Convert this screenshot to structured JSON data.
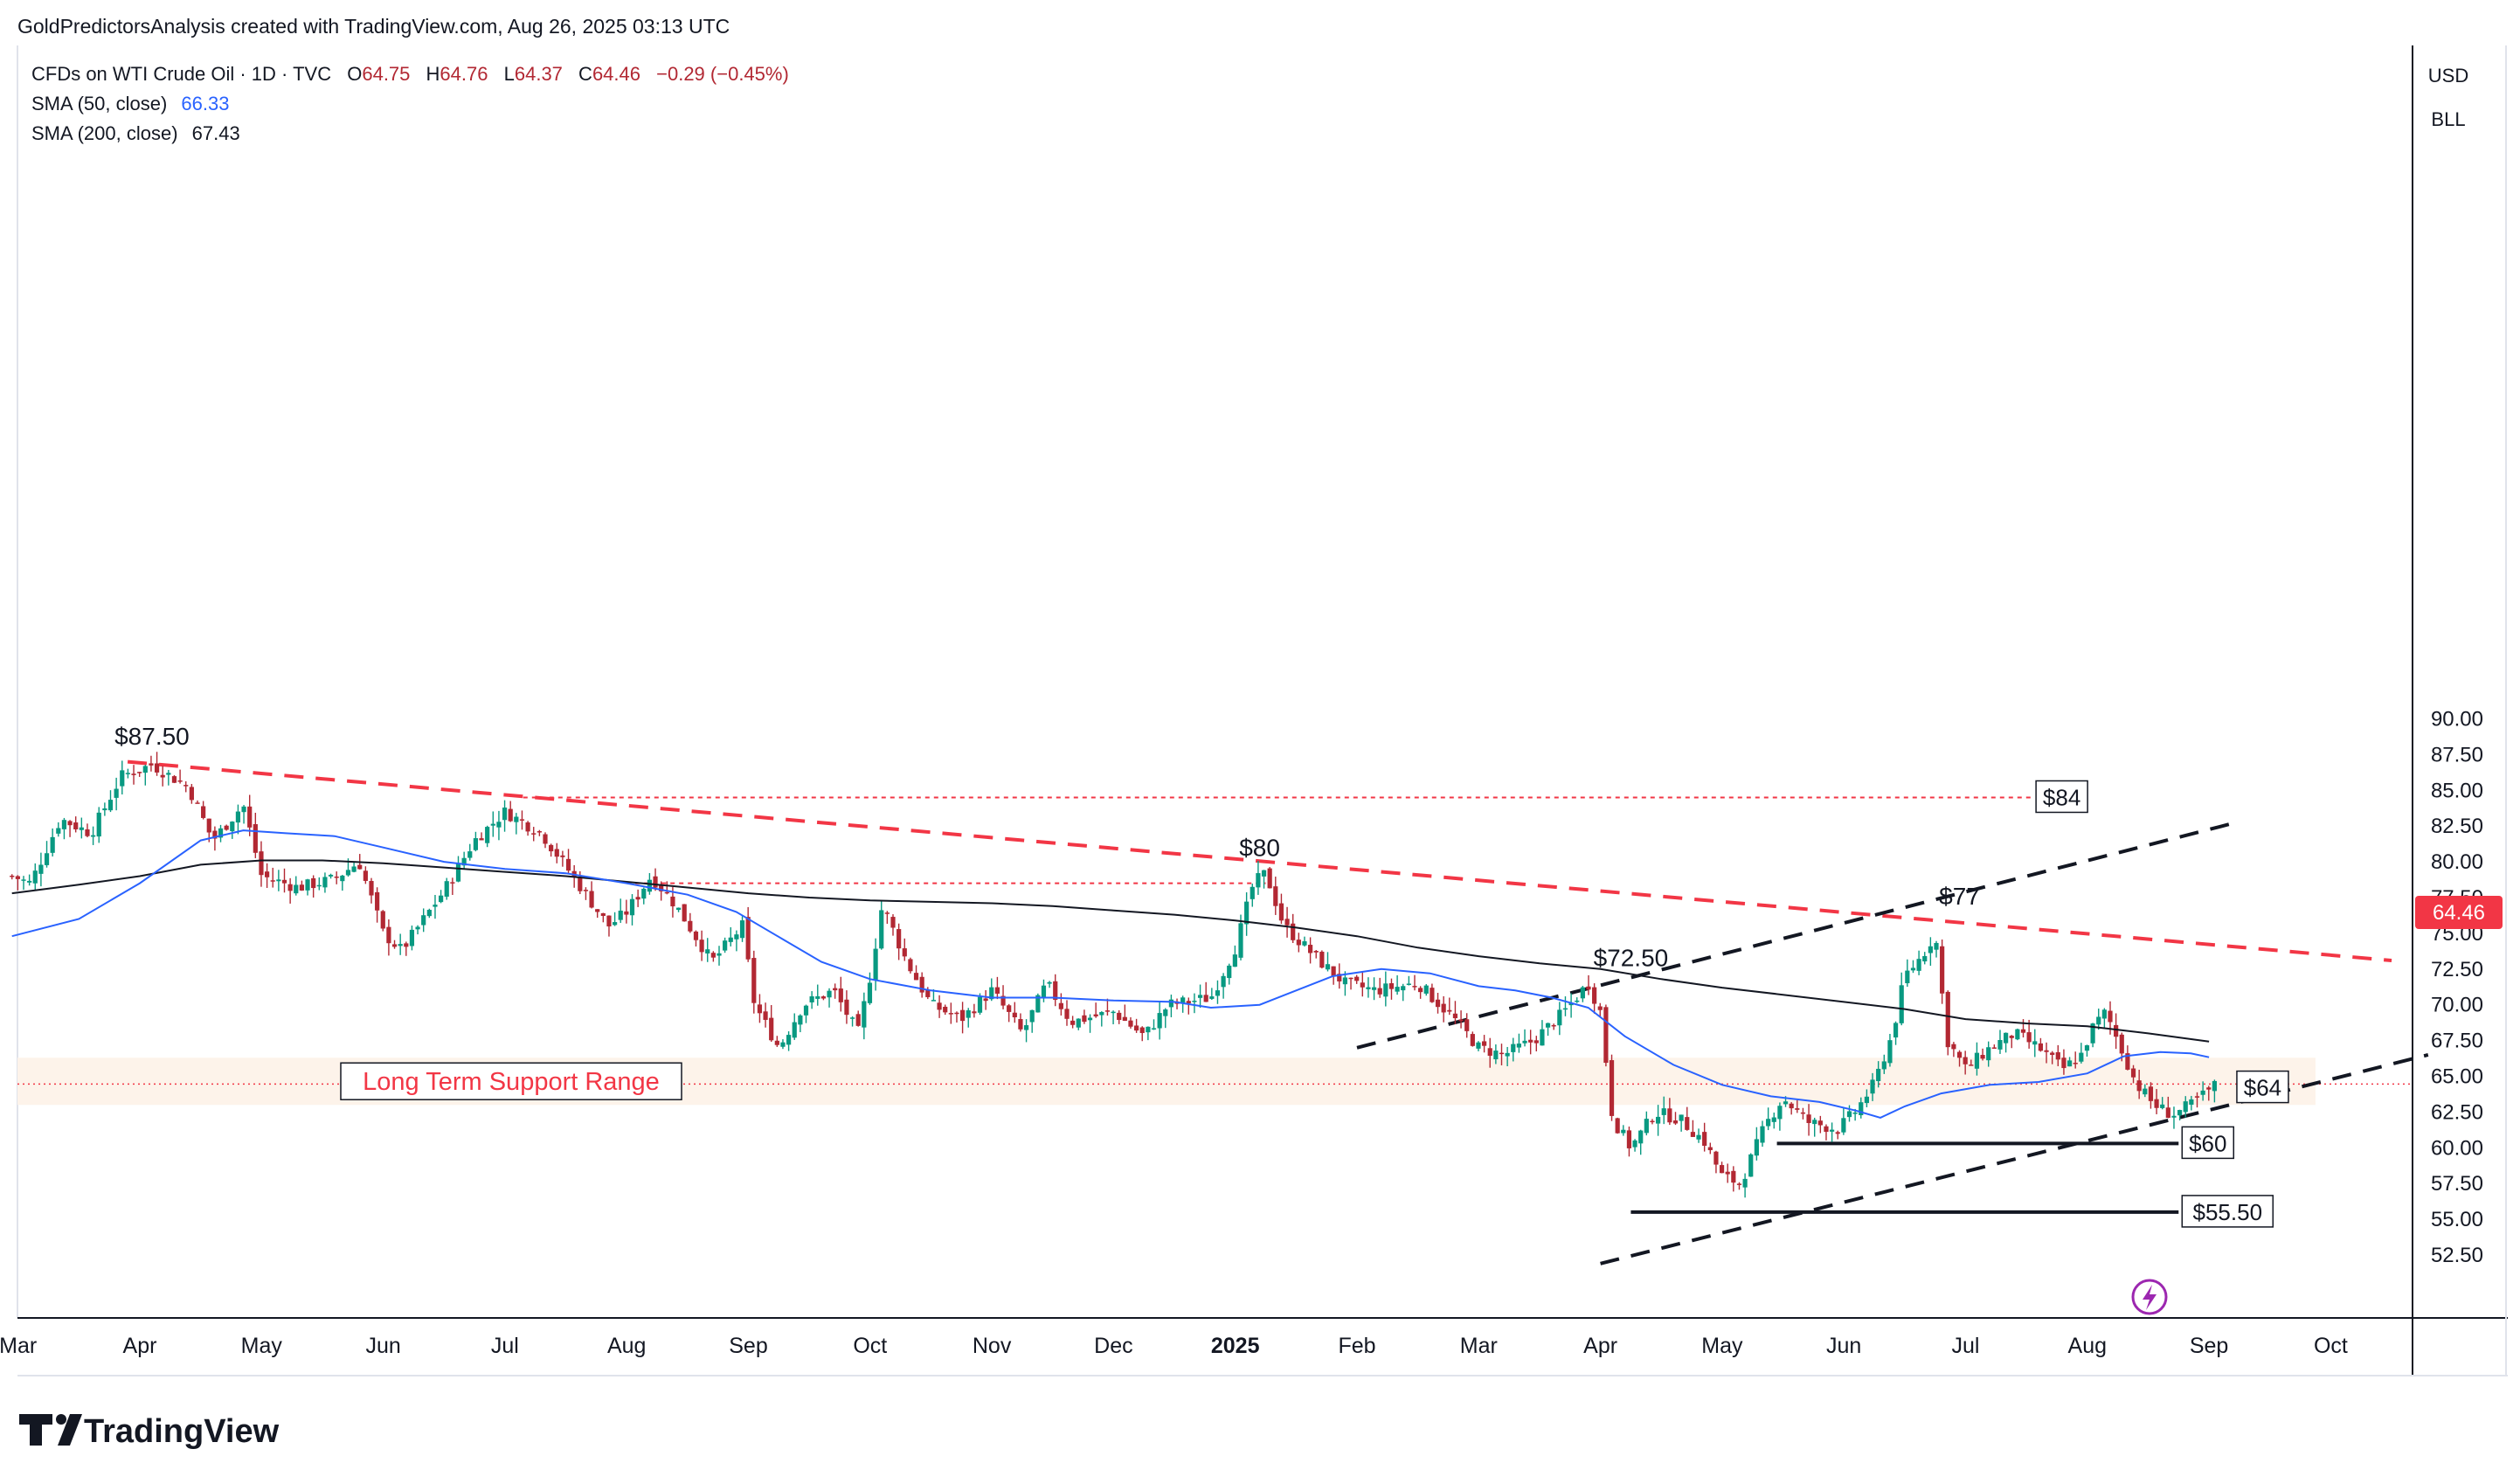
{
  "header": {
    "attribution": "GoldPredictorsAnalysis created with TradingView.com, Aug 26, 2025 03:13 UTC",
    "symbol_line": "CFDs on WTI Crude Oil · 1D · TVC",
    "ohlc": [
      {
        "k": "O",
        "v": "64.75"
      },
      {
        "k": "H",
        "v": "64.76"
      },
      {
        "k": "L",
        "v": "64.37"
      },
      {
        "k": "C",
        "v": "64.46"
      }
    ],
    "change": "−0.29 (−0.45%)",
    "sma50_label": "SMA (50, close)",
    "sma50_value": "66.33",
    "sma200_label": "SMA (200, close)",
    "sma200_value": "67.43"
  },
  "axis_meta": {
    "currency": "USD",
    "unit": "BLL"
  },
  "price_tag": "64.46",
  "footer": {
    "logo_text": "TradingView"
  },
  "colors": {
    "up": "#089981",
    "down": "#b22833",
    "sma50": "#2962ff",
    "sma200": "#131722",
    "red_dash": "#f23645",
    "support_band": "#fdf3ea",
    "price_tag_bg": "#f23645"
  },
  "chart_data": {
    "type": "candlestick",
    "title": "CFDs on WTI Crude Oil · 1D · TVC",
    "xlabel": "",
    "ylabel": "",
    "ylim": [
      50.4,
      92.8
    ],
    "y_ticks": [
      "52.50",
      "55.00",
      "57.50",
      "60.00",
      "62.50",
      "65.00",
      "67.50",
      "70.00",
      "72.50",
      "75.00",
      "77.50",
      "80.00",
      "82.50",
      "85.00",
      "87.50",
      "90.00"
    ],
    "x_ticks": [
      {
        "label": "Mar",
        "t": -1.0
      },
      {
        "label": "Apr",
        "t": 0.0
      },
      {
        "label": "May",
        "t": 1.0
      },
      {
        "label": "Jun",
        "t": 2.0
      },
      {
        "label": "Jul",
        "t": 3.0
      },
      {
        "label": "Aug",
        "t": 4.0
      },
      {
        "label": "Sep",
        "t": 5.0
      },
      {
        "label": "Oct",
        "t": 6.0
      },
      {
        "label": "Nov",
        "t": 7.0
      },
      {
        "label": "Dec",
        "t": 8.0
      },
      {
        "label": "2025",
        "t": 9.0,
        "bold": true
      },
      {
        "label": "Feb",
        "t": 10.0
      },
      {
        "label": "Mar",
        "t": 11.0
      },
      {
        "label": "Apr",
        "t": 12.0
      },
      {
        "label": "May",
        "t": 13.0
      },
      {
        "label": "Jun",
        "t": 14.0
      },
      {
        "label": "Jul",
        "t": 15.0
      },
      {
        "label": "Aug",
        "t": 16.0
      },
      {
        "label": "Sep",
        "t": 17.0
      },
      {
        "label": "Oct",
        "t": 18.0
      }
    ],
    "price_anchors": [
      {
        "t": -1.05,
        "p": 79.0
      },
      {
        "t": -0.9,
        "p": 78.5
      },
      {
        "t": -0.65,
        "p": 83.0
      },
      {
        "t": -0.4,
        "p": 82.0
      },
      {
        "t": -0.15,
        "p": 86.0
      },
      {
        "t": 0.1,
        "p": 86.8
      },
      {
        "t": 0.4,
        "p": 85.2
      },
      {
        "t": 0.6,
        "p": 81.5
      },
      {
        "t": 0.85,
        "p": 84.0
      },
      {
        "t": 1.0,
        "p": 79.0
      },
      {
        "t": 1.3,
        "p": 78.2
      },
      {
        "t": 1.6,
        "p": 78.8
      },
      {
        "t": 1.8,
        "p": 80.0
      },
      {
        "t": 2.0,
        "p": 75.0
      },
      {
        "t": 2.15,
        "p": 73.8
      },
      {
        "t": 2.5,
        "p": 78.0
      },
      {
        "t": 2.75,
        "p": 81.5
      },
      {
        "t": 3.0,
        "p": 83.5
      },
      {
        "t": 3.3,
        "p": 82.0
      },
      {
        "t": 3.6,
        "p": 78.5
      },
      {
        "t": 3.85,
        "p": 75.5
      },
      {
        "t": 4.0,
        "p": 76.5
      },
      {
        "t": 4.2,
        "p": 79.0
      },
      {
        "t": 4.4,
        "p": 77.0
      },
      {
        "t": 4.7,
        "p": 73.0
      },
      {
        "t": 4.95,
        "p": 75.5
      },
      {
        "t": 5.05,
        "p": 70.0
      },
      {
        "t": 5.25,
        "p": 67.0
      },
      {
        "t": 5.45,
        "p": 70.0
      },
      {
        "t": 5.7,
        "p": 71.0
      },
      {
        "t": 5.9,
        "p": 68.0
      },
      {
        "t": 6.0,
        "p": 72.0
      },
      {
        "t": 6.1,
        "p": 77.0
      },
      {
        "t": 6.3,
        "p": 73.0
      },
      {
        "t": 6.5,
        "p": 70.0
      },
      {
        "t": 6.75,
        "p": 69.0
      },
      {
        "t": 7.0,
        "p": 71.0
      },
      {
        "t": 7.25,
        "p": 68.0
      },
      {
        "t": 7.45,
        "p": 71.5
      },
      {
        "t": 7.65,
        "p": 68.8
      },
      {
        "t": 8.0,
        "p": 69.5
      },
      {
        "t": 8.25,
        "p": 67.8
      },
      {
        "t": 8.45,
        "p": 70.0
      },
      {
        "t": 8.8,
        "p": 70.5
      },
      {
        "t": 9.0,
        "p": 74.0
      },
      {
        "t": 9.15,
        "p": 78.5
      },
      {
        "t": 9.25,
        "p": 79.2
      },
      {
        "t": 9.4,
        "p": 75.5
      },
      {
        "t": 9.7,
        "p": 73.0
      },
      {
        "t": 9.9,
        "p": 71.5
      },
      {
        "t": 10.15,
        "p": 71.0
      },
      {
        "t": 10.5,
        "p": 71.5
      },
      {
        "t": 10.8,
        "p": 69.0
      },
      {
        "t": 11.0,
        "p": 67.0
      },
      {
        "t": 11.2,
        "p": 66.5
      },
      {
        "t": 11.45,
        "p": 67.5
      },
      {
        "t": 11.7,
        "p": 69.5
      },
      {
        "t": 11.9,
        "p": 71.5
      },
      {
        "t": 12.0,
        "p": 69.5
      },
      {
        "t": 12.1,
        "p": 62.0
      },
      {
        "t": 12.25,
        "p": 60.0
      },
      {
        "t": 12.45,
        "p": 62.5
      },
      {
        "t": 12.65,
        "p": 62.0
      },
      {
        "t": 12.85,
        "p": 60.5
      },
      {
        "t": 13.0,
        "p": 58.0
      },
      {
        "t": 13.15,
        "p": 57.5
      },
      {
        "t": 13.35,
        "p": 61.5
      },
      {
        "t": 13.5,
        "p": 63.5
      },
      {
        "t": 13.7,
        "p": 61.8
      },
      {
        "t": 13.95,
        "p": 61.3
      },
      {
        "t": 14.1,
        "p": 62.6
      },
      {
        "t": 14.25,
        "p": 64.5
      },
      {
        "t": 14.4,
        "p": 68.0
      },
      {
        "t": 14.5,
        "p": 72.0
      },
      {
        "t": 14.65,
        "p": 73.5
      },
      {
        "t": 14.75,
        "p": 75.0
      },
      {
        "t": 14.85,
        "p": 67.5
      },
      {
        "t": 15.0,
        "p": 65.5
      },
      {
        "t": 15.2,
        "p": 67.0
      },
      {
        "t": 15.4,
        "p": 68.0
      },
      {
        "t": 15.6,
        "p": 67.0
      },
      {
        "t": 15.8,
        "p": 65.5
      },
      {
        "t": 15.95,
        "p": 66.5
      },
      {
        "t": 16.05,
        "p": 68.5
      },
      {
        "t": 16.15,
        "p": 69.5
      },
      {
        "t": 16.25,
        "p": 67.5
      },
      {
        "t": 16.4,
        "p": 64.5
      },
      {
        "t": 16.55,
        "p": 63.0
      },
      {
        "t": 16.7,
        "p": 62.3
      },
      {
        "t": 16.85,
        "p": 63.0
      },
      {
        "t": 17.0,
        "p": 64.0
      },
      {
        "t": 17.06,
        "p": 64.46
      }
    ],
    "sma50": [
      {
        "t": -1.05,
        "p": 74.8
      },
      {
        "t": -0.5,
        "p": 76.0
      },
      {
        "t": 0.0,
        "p": 78.5
      },
      {
        "t": 0.5,
        "p": 81.5
      },
      {
        "t": 0.85,
        "p": 82.2
      },
      {
        "t": 1.2,
        "p": 82.0
      },
      {
        "t": 1.6,
        "p": 81.8
      },
      {
        "t": 2.0,
        "p": 81.0
      },
      {
        "t": 2.5,
        "p": 80.0
      },
      {
        "t": 3.0,
        "p": 79.5
      },
      {
        "t": 3.5,
        "p": 79.2
      },
      {
        "t": 4.0,
        "p": 78.5
      },
      {
        "t": 4.5,
        "p": 77.7
      },
      {
        "t": 4.9,
        "p": 76.5
      },
      {
        "t": 5.3,
        "p": 74.5
      },
      {
        "t": 5.6,
        "p": 73.0
      },
      {
        "t": 6.0,
        "p": 71.8
      },
      {
        "t": 6.5,
        "p": 71.0
      },
      {
        "t": 7.0,
        "p": 70.5
      },
      {
        "t": 7.5,
        "p": 70.5
      },
      {
        "t": 8.0,
        "p": 70.3
      },
      {
        "t": 8.5,
        "p": 70.2
      },
      {
        "t": 8.8,
        "p": 69.8
      },
      {
        "t": 9.2,
        "p": 70.0
      },
      {
        "t": 9.5,
        "p": 71.0
      },
      {
        "t": 9.8,
        "p": 72.0
      },
      {
        "t": 10.2,
        "p": 72.5
      },
      {
        "t": 10.6,
        "p": 72.2
      },
      {
        "t": 11.0,
        "p": 71.3
      },
      {
        "t": 11.3,
        "p": 71.0
      },
      {
        "t": 11.6,
        "p": 70.5
      },
      {
        "t": 11.9,
        "p": 69.8
      },
      {
        "t": 12.2,
        "p": 67.8
      },
      {
        "t": 12.6,
        "p": 65.8
      },
      {
        "t": 13.0,
        "p": 64.4
      },
      {
        "t": 13.4,
        "p": 63.6
      },
      {
        "t": 13.8,
        "p": 63.2
      },
      {
        "t": 14.1,
        "p": 62.6
      },
      {
        "t": 14.3,
        "p": 62.1
      },
      {
        "t": 14.5,
        "p": 62.9
      },
      {
        "t": 14.8,
        "p": 63.8
      },
      {
        "t": 15.2,
        "p": 64.4
      },
      {
        "t": 15.6,
        "p": 64.6
      },
      {
        "t": 16.0,
        "p": 65.2
      },
      {
        "t": 16.3,
        "p": 66.4
      },
      {
        "t": 16.6,
        "p": 66.7
      },
      {
        "t": 16.85,
        "p": 66.6
      },
      {
        "t": 17.0,
        "p": 66.33
      }
    ],
    "sma200": [
      {
        "t": -1.05,
        "p": 77.8
      },
      {
        "t": -0.5,
        "p": 78.4
      },
      {
        "t": 0.0,
        "p": 79.0
      },
      {
        "t": 0.5,
        "p": 79.8
      },
      {
        "t": 1.0,
        "p": 80.1
      },
      {
        "t": 1.5,
        "p": 80.1
      },
      {
        "t": 2.0,
        "p": 79.9
      },
      {
        "t": 2.5,
        "p": 79.6
      },
      {
        "t": 3.0,
        "p": 79.3
      },
      {
        "t": 3.5,
        "p": 79.0
      },
      {
        "t": 4.0,
        "p": 78.6
      },
      {
        "t": 4.5,
        "p": 78.2
      },
      {
        "t": 5.0,
        "p": 77.8
      },
      {
        "t": 5.5,
        "p": 77.5
      },
      {
        "t": 6.0,
        "p": 77.3
      },
      {
        "t": 6.5,
        "p": 77.2
      },
      {
        "t": 7.0,
        "p": 77.1
      },
      {
        "t": 7.5,
        "p": 76.9
      },
      {
        "t": 8.0,
        "p": 76.6
      },
      {
        "t": 8.5,
        "p": 76.3
      },
      {
        "t": 9.0,
        "p": 75.9
      },
      {
        "t": 9.5,
        "p": 75.4
      },
      {
        "t": 10.0,
        "p": 74.8
      },
      {
        "t": 10.5,
        "p": 74.0
      },
      {
        "t": 11.0,
        "p": 73.4
      },
      {
        "t": 11.5,
        "p": 72.9
      },
      {
        "t": 12.0,
        "p": 72.5
      },
      {
        "t": 12.5,
        "p": 71.8
      },
      {
        "t": 13.0,
        "p": 71.2
      },
      {
        "t": 13.5,
        "p": 70.7
      },
      {
        "t": 14.0,
        "p": 70.2
      },
      {
        "t": 14.5,
        "p": 69.7
      },
      {
        "t": 15.0,
        "p": 69.0
      },
      {
        "t": 15.5,
        "p": 68.7
      },
      {
        "t": 16.0,
        "p": 68.5
      },
      {
        "t": 16.5,
        "p": 68.0
      },
      {
        "t": 17.0,
        "p": 67.43
      }
    ],
    "drawings": {
      "support_range": {
        "label": "Long Term Support Range",
        "low": 63.0,
        "high": 66.3
      },
      "upper_trendline": {
        "from": {
          "t": -0.1,
          "p": 87.0
        },
        "to": {
          "t": 18.5,
          "p": 73.1
        }
      },
      "channel_upper": {
        "from": {
          "t": 10.0,
          "p": 67.0
        },
        "to": {
          "t": 17.2,
          "p": 82.7
        }
      },
      "channel_lower": {
        "from": {
          "t": 12.0,
          "p": 51.9
        },
        "to": {
          "t": 18.8,
          "p": 66.5
        }
      },
      "horizontal_levels": [
        {
          "label": "$84",
          "price": 84.5,
          "from": 3.15,
          "to": 15.55,
          "style": "dashed-red",
          "label_at": 15.55
        },
        {
          "label": "",
          "price": 78.5,
          "from": 4.0,
          "to": 9.25,
          "style": "dashed-red"
        },
        {
          "label": "$60",
          "price": 60.3,
          "from": 13.45,
          "to": 16.75,
          "style": "solid-black",
          "label_at": 16.75
        },
        {
          "label": "$55.50",
          "price": 55.5,
          "from": 12.25,
          "to": 16.75,
          "style": "solid-black",
          "label_at": 16.75
        },
        {
          "label": "$64",
          "price": 64.2,
          "from": 17.2,
          "to": 17.2,
          "style": "box",
          "label_at": 17.2
        }
      ],
      "annotations": [
        {
          "label": "$87.50",
          "t": 0.1,
          "p": 88.2
        },
        {
          "label": "$80",
          "t": 9.2,
          "p": 80.4
        },
        {
          "label": "$72.50",
          "t": 12.25,
          "p": 72.7
        },
        {
          "label": "$77",
          "t": 14.95,
          "p": 77.0
        }
      ]
    }
  }
}
